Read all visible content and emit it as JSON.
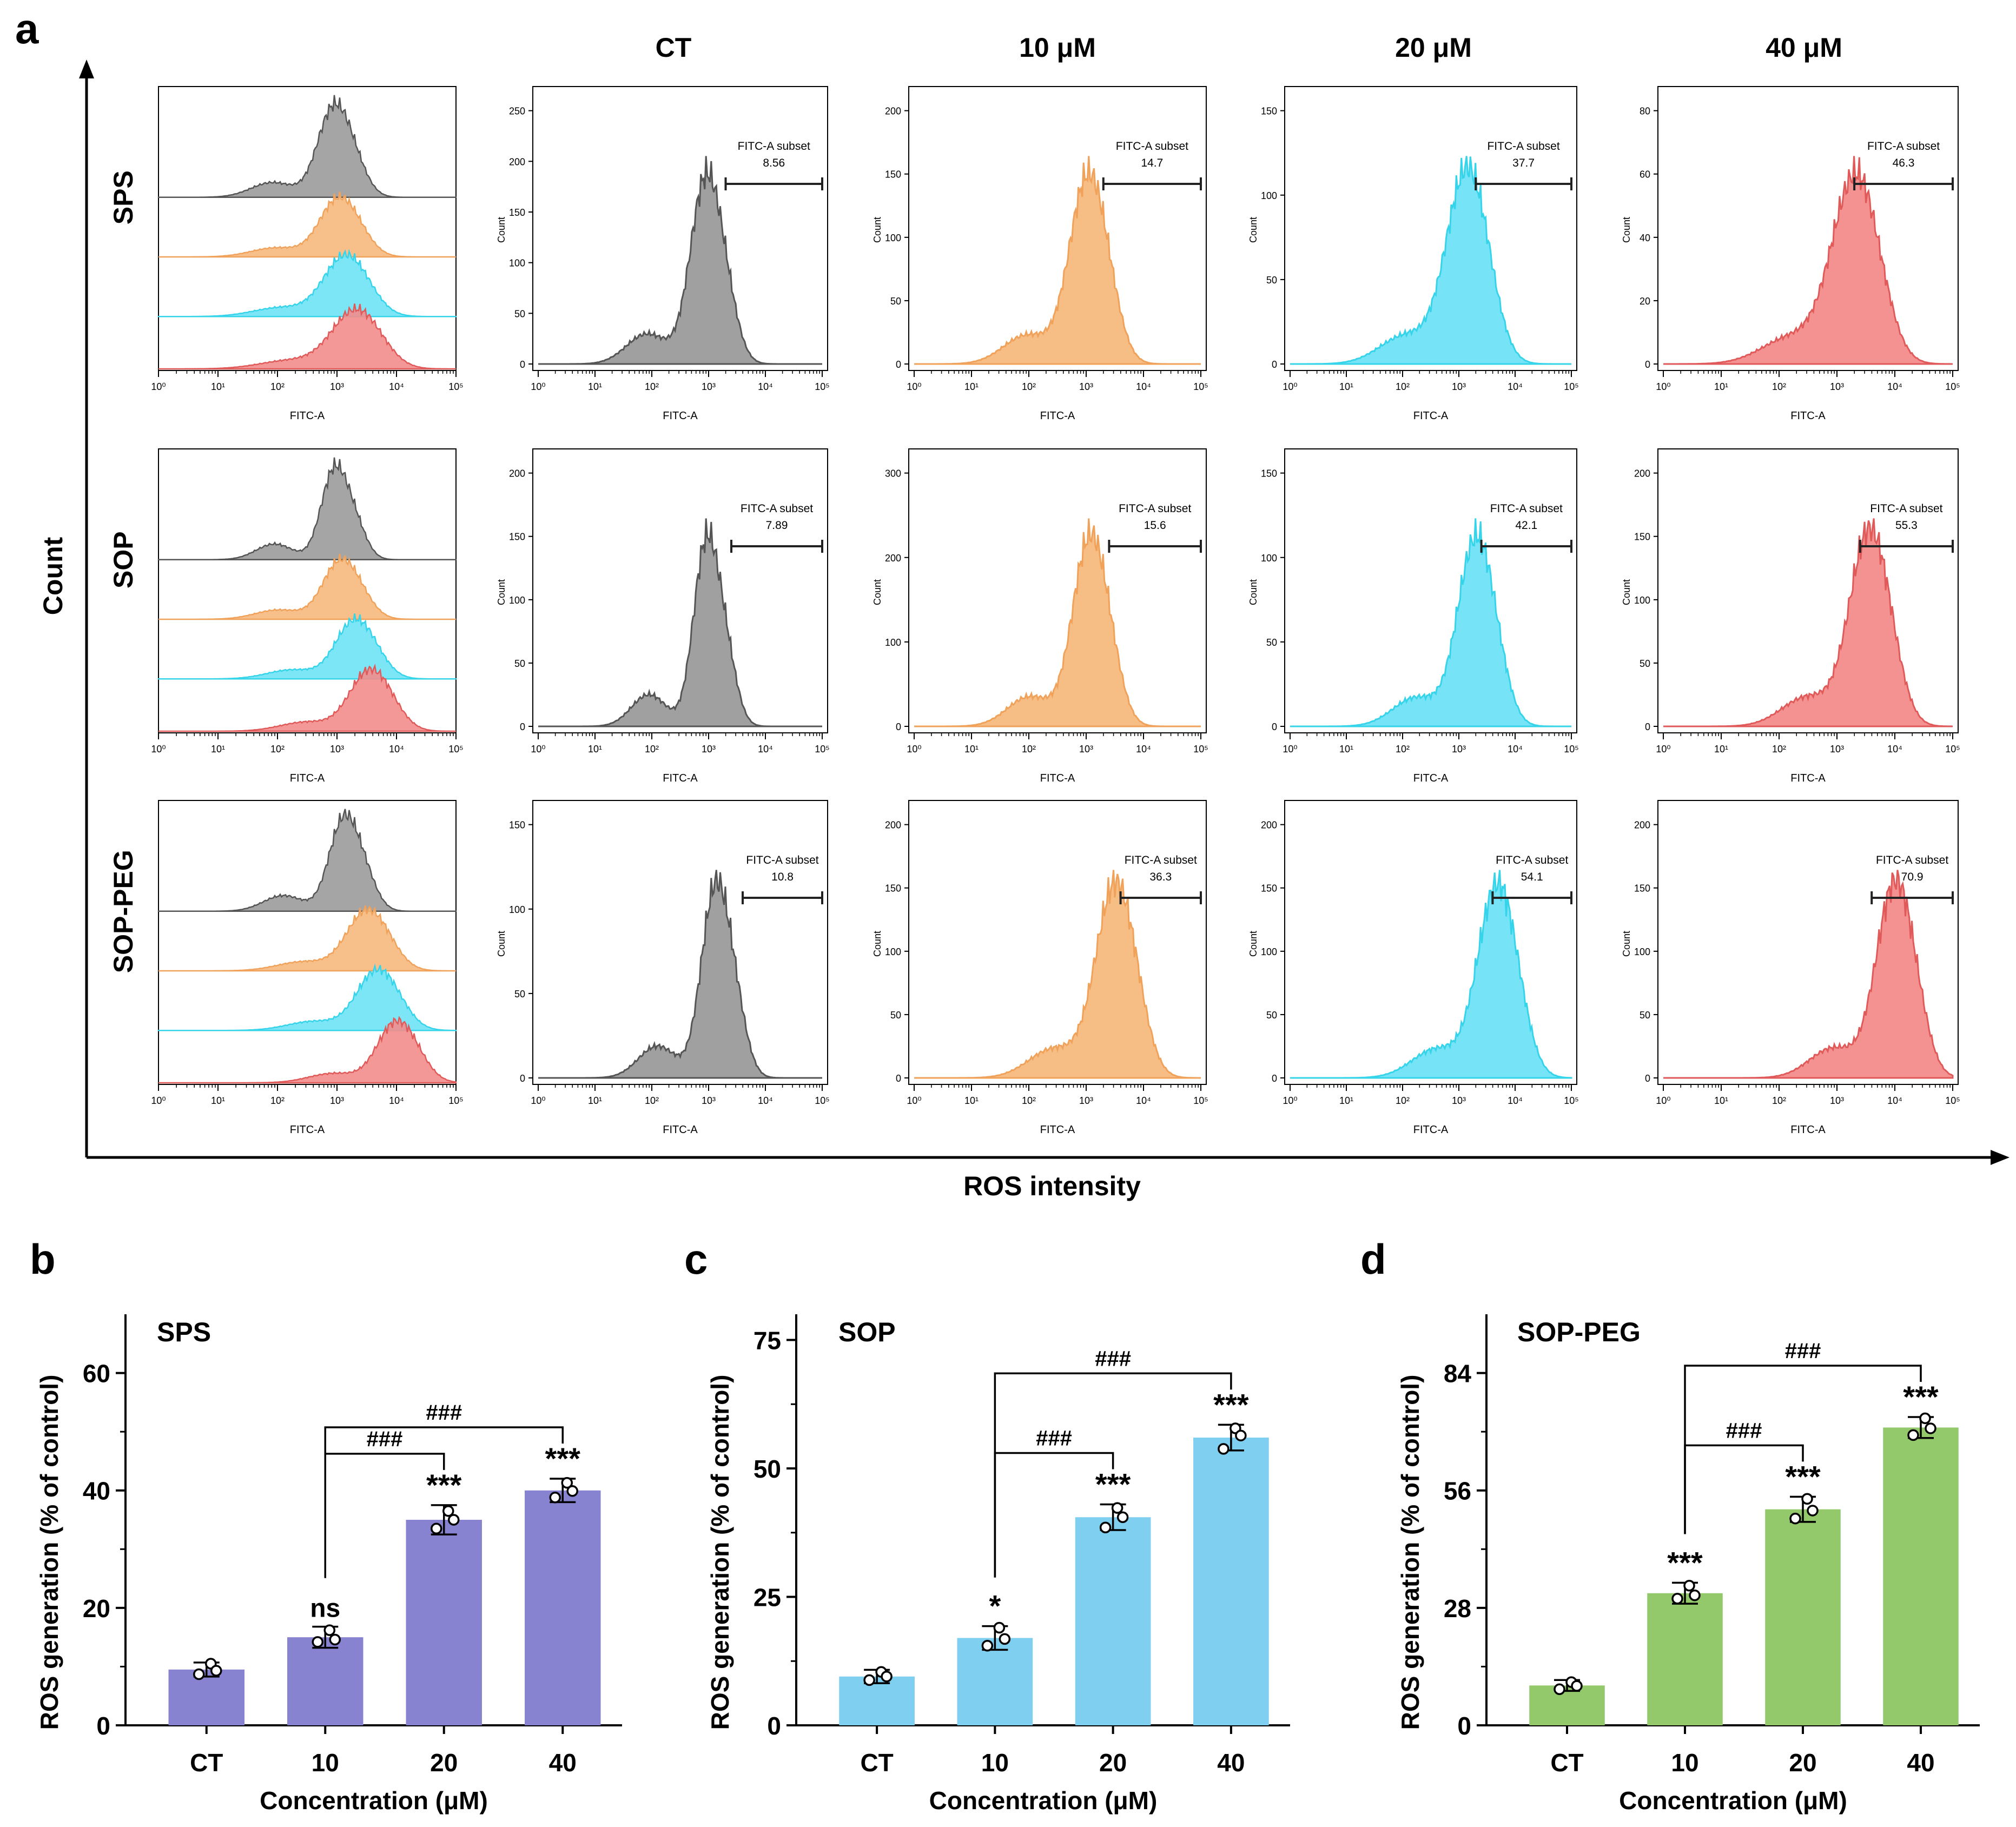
{
  "colors": {
    "CT": "#9b9b9b",
    "10": "#f6b97e",
    "20": "#6fe3f5",
    "40": "#f38c8c",
    "CT_line": "#555555",
    "10_line": "#f0a25a",
    "20_line": "#36d4ea",
    "40_line": "#e05a5a",
    "bar_SPS": "#8783d0",
    "bar_SOP": "#7fcff0",
    "bar_SOPPEG": "#93c96a"
  },
  "panel_a": {
    "letter": "a",
    "column_headers": [
      "CT",
      "10 μM",
      "20 μM",
      "40 μM"
    ],
    "row_labels": [
      "SPS",
      "SOP",
      "SOP-PEG"
    ],
    "y_axis_title": "Count",
    "x_axis_title": "ROS intensity",
    "histogram_x_label": "FITC-A",
    "histogram_y_label": "Count",
    "x_tick_labels": [
      "10⁰",
      "10¹",
      "10²",
      "10³",
      "10⁴",
      "10⁵"
    ],
    "gate_label": "FITC-A subset"
  },
  "chart_data": [
    {
      "type": "histogram-grid",
      "title": "",
      "xlabel": "FITC-A",
      "ylabel": "Count",
      "x_scale": "log10",
      "xlim_log": [
        0,
        5
      ],
      "conditions": [
        "CT",
        "10",
        "20",
        "40"
      ],
      "rows": [
        {
          "name": "SPS",
          "panels": [
            {
              "condition": "CT",
              "peak_log": 2.92,
              "width_log": 0.26,
              "ymax": 250,
              "yticks": [
                0,
                50,
                100,
                150,
                200,
                250
              ],
              "gate_value": "8.56",
              "gate_start_log": 3.3
            },
            {
              "condition": "10",
              "peak_log": 2.98,
              "width_log": 0.3,
              "ymax": 200,
              "yticks": [
                0,
                50,
                100,
                150,
                200
              ],
              "gate_value": "14.7",
              "gate_start_log": 3.3
            },
            {
              "condition": "20",
              "peak_log": 3.08,
              "width_log": 0.34,
              "ymax": 150,
              "yticks": [
                0,
                50,
                100,
                150
              ],
              "gate_value": "37.7",
              "gate_start_log": 3.3
            },
            {
              "condition": "40",
              "peak_log": 3.25,
              "width_log": 0.38,
              "ymax": 80,
              "yticks": [
                0,
                20,
                40,
                60,
                80
              ],
              "gate_value": "46.3",
              "gate_start_log": 3.3
            }
          ]
        },
        {
          "name": "SOP",
          "panels": [
            {
              "condition": "CT",
              "peak_log": 2.95,
              "width_log": 0.22,
              "ymax": 200,
              "yticks": [
                0,
                50,
                100,
                150,
                200
              ],
              "gate_value": "7.89",
              "gate_start_log": 3.4
            },
            {
              "condition": "10",
              "peak_log": 3.02,
              "width_log": 0.28,
              "ymax": 300,
              "yticks": [
                0,
                100,
                200,
                300
              ],
              "gate_value": "15.6",
              "gate_start_log": 3.4
            },
            {
              "condition": "20",
              "peak_log": 3.25,
              "width_log": 0.3,
              "ymax": 150,
              "yticks": [
                0,
                50,
                100,
                150
              ],
              "gate_value": "42.1",
              "gate_start_log": 3.4
            },
            {
              "condition": "40",
              "peak_log": 3.5,
              "width_log": 0.32,
              "ymax": 200,
              "yticks": [
                0,
                50,
                100,
                150,
                200
              ],
              "gate_value": "55.3",
              "gate_start_log": 3.4
            }
          ]
        },
        {
          "name": "SOP-PEG",
          "panels": [
            {
              "condition": "CT",
              "peak_log": 3.1,
              "width_log": 0.24,
              "ymax": 150,
              "yticks": [
                0,
                50,
                100,
                150
              ],
              "gate_value": "10.8",
              "gate_start_log": 3.6
            },
            {
              "condition": "10",
              "peak_log": 3.45,
              "width_log": 0.32,
              "ymax": 200,
              "yticks": [
                0,
                50,
                100,
                150,
                200
              ],
              "gate_value": "36.3",
              "gate_start_log": 3.6
            },
            {
              "condition": "20",
              "peak_log": 3.62,
              "width_log": 0.32,
              "ymax": 200,
              "yticks": [
                0,
                50,
                100,
                150,
                200
              ],
              "gate_value": "54.1",
              "gate_start_log": 3.6
            },
            {
              "condition": "40",
              "peak_log": 3.95,
              "width_log": 0.3,
              "ymax": 200,
              "yticks": [
                0,
                50,
                100,
                150,
                200
              ],
              "gate_value": "70.9",
              "gate_start_log": 3.6
            }
          ]
        }
      ]
    },
    {
      "type": "bar",
      "letter": "b",
      "title": "SPS",
      "xlabel": "Concentration (μM)",
      "ylabel": "ROS generation (% of control)",
      "categories": [
        "CT",
        "10",
        "20",
        "40"
      ],
      "values": [
        9.5,
        15,
        35,
        40
      ],
      "errors": [
        1.2,
        1.8,
        2.5,
        2.0
      ],
      "points": [
        [
          8.7,
          10.5,
          9.3
        ],
        [
          14.2,
          16.2,
          14.6
        ],
        [
          33.5,
          36.5,
          35.0
        ],
        [
          38.8,
          41.3,
          39.9
        ]
      ],
      "ylim": [
        0,
        70
      ],
      "yticks": [
        0,
        20,
        40,
        60
      ],
      "significance": [
        "",
        "ns",
        "***",
        "***"
      ],
      "brackets": [
        {
          "from": 1,
          "to": 2,
          "label": "###"
        },
        {
          "from": 1,
          "to": 3,
          "label": "###"
        }
      ]
    },
    {
      "type": "bar",
      "letter": "c",
      "title": "SOP",
      "xlabel": "Concentration (μM)",
      "ylabel": "ROS generation (% of control)",
      "categories": [
        "CT",
        "10",
        "20",
        "40"
      ],
      "values": [
        9.5,
        17,
        40.5,
        56
      ],
      "errors": [
        1.3,
        2.3,
        2.5,
        2.5
      ],
      "points": [
        [
          8.8,
          10.4,
          9.5
        ],
        [
          15.5,
          19.0,
          16.8
        ],
        [
          38.5,
          42.3,
          40.5
        ],
        [
          53.8,
          57.8,
          56.4
        ]
      ],
      "ylim": [
        0,
        80
      ],
      "yticks": [
        0,
        25,
        50,
        75
      ],
      "significance": [
        "",
        "*",
        "***",
        "***"
      ],
      "brackets": [
        {
          "from": 1,
          "to": 2,
          "label": "###"
        },
        {
          "from": 1,
          "to": 3,
          "label": "###"
        }
      ]
    },
    {
      "type": "bar",
      "letter": "d",
      "title": "SOP-PEG",
      "xlabel": "Concentration (μM)",
      "ylabel": "ROS generation (% of control)",
      "categories": [
        "CT",
        "10",
        "20",
        "40"
      ],
      "values": [
        9.5,
        31.5,
        51.5,
        71
      ],
      "errors": [
        1.3,
        2.5,
        3.0,
        2.5
      ],
      "points": [
        [
          8.6,
          10.3,
          9.4
        ],
        [
          30.2,
          33.3,
          31.0
        ],
        [
          49.3,
          54.0,
          51.2
        ],
        [
          69.2,
          73.2,
          70.8
        ]
      ],
      "ylim": [
        0,
        98
      ],
      "yticks": [
        0,
        28,
        56,
        84
      ],
      "significance": [
        "",
        "***",
        "***",
        "***"
      ],
      "brackets": [
        {
          "from": 1,
          "to": 2,
          "label": "###"
        },
        {
          "from": 1,
          "to": 3,
          "label": "###"
        }
      ]
    }
  ]
}
